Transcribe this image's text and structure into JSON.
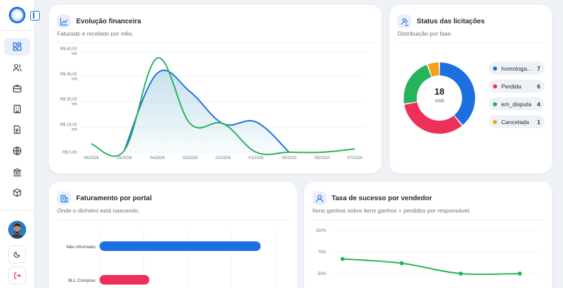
{
  "sidebar": {
    "nav_icons": [
      "dashboard-icon",
      "users-icon",
      "briefcase-icon",
      "building-icon",
      "document-icon",
      "globe-icon",
      "bank-icon",
      "package-icon"
    ],
    "active_index": 0,
    "bottom_icons": [
      "avatar",
      "moon-icon",
      "logout-icon"
    ]
  },
  "colors": {
    "primary": "#1d6fe0",
    "green": "#27b35a",
    "red": "#ee2f5a",
    "orange": "#f3a11b"
  },
  "evolucao": {
    "title": "Evolução financeira",
    "subtitle": "Faturado e recebido por mês.",
    "chart_data": {
      "type": "line",
      "categories": [
        "06/2026",
        "05/2026",
        "04/2026",
        "03/2026",
        "02/2026",
        "01/2026",
        "09/2025",
        "08/2025",
        "07/2026"
      ],
      "y_ticks": [
        "R$ 60,00 mil",
        "R$ 45,00 mil",
        "R$ 30,00 mil",
        "R$ 15,00 mil",
        "R$ 0,00"
      ],
      "ylim": [
        0,
        60000
      ],
      "series": [
        {
          "color": "#1d6fe0",
          "values": [
            null,
            1000,
            47000,
            36000,
            17000,
            18000,
            0,
            null,
            null
          ]
        },
        {
          "color": "#27b35a",
          "values": [
            5000,
            1000,
            56000,
            17000,
            17000,
            0,
            0,
            0,
            2000
          ]
        }
      ]
    }
  },
  "status": {
    "title": "Status das licitações",
    "subtitle": "Distribuição por fase.",
    "total": "18",
    "total_label": "total",
    "chart_data": {
      "type": "pie",
      "slices": [
        {
          "label": "homologa...",
          "value": 7,
          "color": "#1d6fe0"
        },
        {
          "label": "Perdida",
          "value": 6,
          "color": "#ee2f5a"
        },
        {
          "label": "em_disputa",
          "value": 4,
          "color": "#27b35a"
        },
        {
          "label": "Cancelada",
          "value": 1,
          "color": "#f3a11b"
        }
      ]
    },
    "legend": [
      {
        "label": "homologa...",
        "count": "7",
        "color": "#1d6fe0"
      },
      {
        "label": "Perdida",
        "count": "6",
        "color": "#ee2f5a"
      },
      {
        "label": "em_disputa",
        "count": "4",
        "color": "#27b35a"
      },
      {
        "label": "Cancelada",
        "count": "1",
        "color": "#f3a11b"
      }
    ]
  },
  "portal": {
    "title": "Faturamento por portal",
    "subtitle": "Onde o dinheiro está nascendo.",
    "chart_data": {
      "type": "bar",
      "orientation": "horizontal",
      "categories": [
        "Não informado",
        "BLL Compras"
      ],
      "values": [
        55000,
        17000
      ],
      "colors": [
        "#1d6fe0",
        "#ee2f5a"
      ],
      "xlim": [
        0,
        60000
      ]
    }
  },
  "sucesso": {
    "title": "Taxa de sucesso por vendedor",
    "subtitle": "Itens ganhos sobre itens ganhos + perdidos por responsável.",
    "chart_data": {
      "type": "line",
      "y_ticks": [
        "100%",
        "75%",
        "50%"
      ],
      "ylim": [
        50,
        100
      ],
      "series": [
        {
          "color": "#27b35a",
          "values": [
            67,
            62,
            50,
            50
          ]
        }
      ]
    }
  }
}
